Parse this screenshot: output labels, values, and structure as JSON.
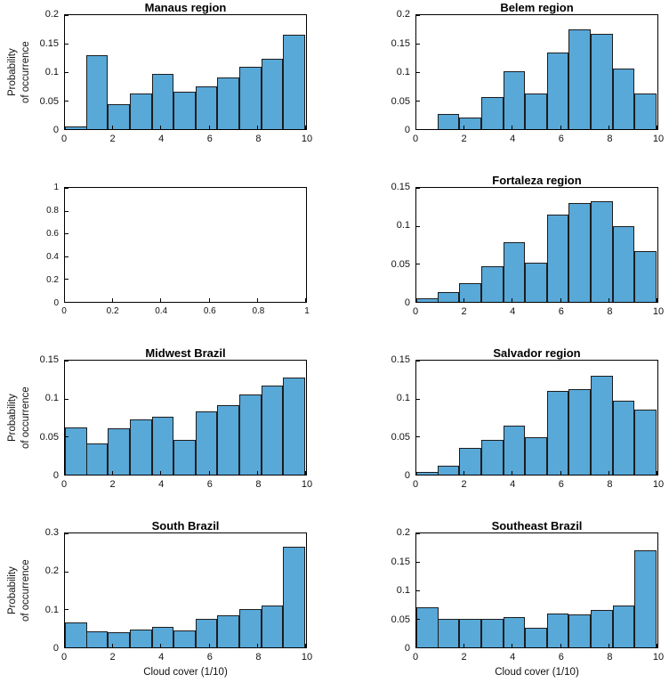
{
  "figure": {
    "background": "#ffffff",
    "colors": {
      "bar_fill": "#58a8d8",
      "bar_edge": "#1d1d1d",
      "axis": "#000000"
    }
  },
  "chart_data": [
    {
      "type": "bar",
      "title": "Manaus region",
      "ylabel": "Probability\nof occurrence",
      "xlabel": "",
      "x_bins": [
        0,
        1,
        2,
        3,
        4,
        5,
        6,
        7,
        8,
        9,
        10
      ],
      "values": [
        0.005,
        0.13,
        0.043,
        0.062,
        0.097,
        0.065,
        0.075,
        0.09,
        0.11,
        0.123,
        0.165
      ],
      "xlim": [
        0,
        10
      ],
      "ylim": [
        0,
        0.2
      ],
      "xticks": [
        0,
        2,
        4,
        6,
        8,
        10
      ],
      "yticks": [
        0,
        0.05,
        0.1,
        0.15,
        0.2
      ]
    },
    {
      "type": "bar",
      "title": "Belem region",
      "ylabel": "",
      "xlabel": "",
      "x_bins": [
        0,
        1,
        2,
        3,
        4,
        5,
        6,
        7,
        8,
        9,
        10
      ],
      "values": [
        0,
        0.027,
        0.02,
        0.057,
        0.102,
        0.062,
        0.135,
        0.175,
        0.167,
        0.107,
        0.062
      ],
      "xlim": [
        0,
        10
      ],
      "ylim": [
        0,
        0.2
      ],
      "xticks": [
        0,
        2,
        4,
        6,
        8,
        10
      ],
      "yticks": [
        0,
        0.05,
        0.1,
        0.15,
        0.2
      ]
    },
    {
      "type": "empty",
      "title": "",
      "ylabel": "",
      "xlabel": "",
      "x_bins": [],
      "values": [],
      "xlim": [
        0,
        1
      ],
      "ylim": [
        0,
        1
      ],
      "xticks": [
        0,
        0.2,
        0.4,
        0.6,
        0.8,
        1
      ],
      "yticks": [
        0,
        0.2,
        0.4,
        0.6,
        0.8,
        1
      ]
    },
    {
      "type": "bar",
      "title": "Fortaleza region",
      "ylabel": "",
      "xlabel": "",
      "x_bins": [
        0,
        1,
        2,
        3,
        4,
        5,
        6,
        7,
        8,
        9,
        10
      ],
      "values": [
        0.005,
        0.013,
        0.025,
        0.047,
        0.078,
        0.052,
        0.115,
        0.13,
        0.132,
        0.1,
        0.067
      ],
      "xlim": [
        0,
        10
      ],
      "ylim": [
        0,
        0.15
      ],
      "xticks": [
        0,
        2,
        4,
        6,
        8,
        10
      ],
      "yticks": [
        0,
        0.05,
        0.1,
        0.15
      ]
    },
    {
      "type": "bar",
      "title": "Midwest Brazil",
      "ylabel": "Probability\nof occurrence",
      "xlabel": "",
      "x_bins": [
        0,
        1,
        2,
        3,
        4,
        5,
        6,
        7,
        8,
        9,
        10
      ],
      "values": [
        0.062,
        0.041,
        0.061,
        0.073,
        0.076,
        0.046,
        0.083,
        0.091,
        0.106,
        0.117,
        0.128
      ],
      "xlim": [
        0,
        10
      ],
      "ylim": [
        0,
        0.15
      ],
      "xticks": [
        0,
        2,
        4,
        6,
        8,
        10
      ],
      "yticks": [
        0,
        0.05,
        0.1,
        0.15
      ]
    },
    {
      "type": "bar",
      "title": "Salvador region",
      "ylabel": "",
      "xlabel": "",
      "x_bins": [
        0,
        1,
        2,
        3,
        4,
        5,
        6,
        7,
        8,
        9,
        10
      ],
      "values": [
        0.003,
        0.012,
        0.035,
        0.046,
        0.065,
        0.049,
        0.11,
        0.113,
        0.13,
        0.097,
        0.086
      ],
      "xlim": [
        0,
        10
      ],
      "ylim": [
        0,
        0.15
      ],
      "xticks": [
        0,
        2,
        4,
        6,
        8,
        10
      ],
      "yticks": [
        0,
        0.05,
        0.1,
        0.15
      ]
    },
    {
      "type": "bar",
      "title": "South Brazil",
      "ylabel": "Probability\nof occurrence",
      "xlabel": "Cloud cover (1/10)",
      "x_bins": [
        0,
        1,
        2,
        3,
        4,
        5,
        6,
        7,
        8,
        9,
        10
      ],
      "values": [
        0.065,
        0.042,
        0.041,
        0.046,
        0.053,
        0.044,
        0.075,
        0.085,
        0.1,
        0.11,
        0.265
      ],
      "xlim": [
        0,
        10
      ],
      "ylim": [
        0,
        0.3
      ],
      "xticks": [
        0,
        2,
        4,
        6,
        8,
        10
      ],
      "yticks": [
        0,
        0.1,
        0.2,
        0.3
      ]
    },
    {
      "type": "bar",
      "title": "Southeast Brazil",
      "ylabel": "",
      "xlabel": "Cloud cover (1/10)",
      "x_bins": [
        0,
        1,
        2,
        3,
        4,
        5,
        6,
        7,
        8,
        9,
        10
      ],
      "values": [
        0.07,
        0.05,
        0.05,
        0.05,
        0.053,
        0.035,
        0.06,
        0.058,
        0.065,
        0.073,
        0.17
      ],
      "xlim": [
        0,
        10
      ],
      "ylim": [
        0,
        0.2
      ],
      "xticks": [
        0,
        2,
        4,
        6,
        8,
        10
      ],
      "yticks": [
        0,
        0.05,
        0.1,
        0.15,
        0.2
      ]
    }
  ]
}
